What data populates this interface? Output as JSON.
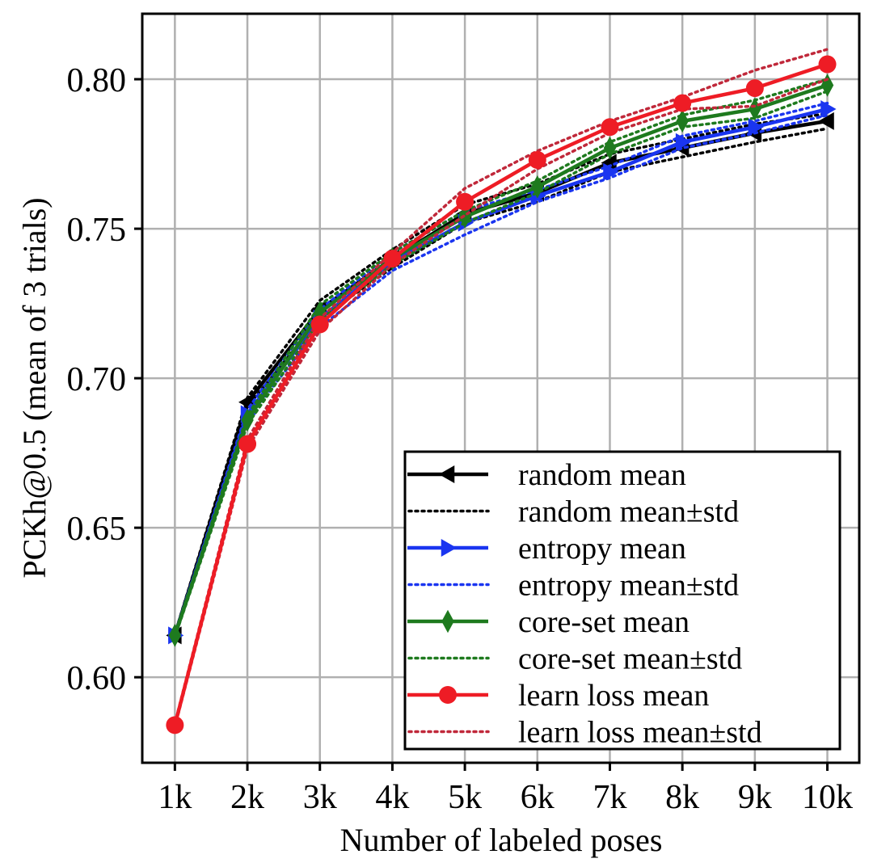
{
  "chart_data": {
    "type": "line",
    "title": "",
    "xlabel": "Number of labeled poses",
    "ylabel": "PCKh@0.5 (mean of 3 trials)",
    "x": [
      1,
      2,
      3,
      4,
      5,
      6,
      7,
      8,
      9,
      10
    ],
    "x_tick_labels": [
      "1k",
      "2k",
      "3k",
      "4k",
      "5k",
      "6k",
      "7k",
      "8k",
      "9k",
      "10k"
    ],
    "xlim": [
      0.55,
      10.44
    ],
    "ylim": [
      0.5714,
      0.8219
    ],
    "y_ticks": [
      0.6,
      0.65,
      0.7,
      0.75,
      0.8
    ],
    "y_tick_labels": [
      "0.60",
      "0.65",
      "0.70",
      "0.75",
      "0.80"
    ],
    "grid": true,
    "legend_position": "lower-right",
    "series": [
      {
        "name": "random",
        "mean_label": "random mean",
        "std_label": "random mean±std",
        "color": "#000000",
        "marker": "triangle-left",
        "mean": [
          0.614,
          0.692,
          0.723,
          0.74,
          0.755,
          0.762,
          0.772,
          0.777,
          0.782,
          0.786
        ],
        "std": [
          0.0005,
          0.0015,
          0.003,
          0.003,
          0.003,
          0.003,
          0.003,
          0.003,
          0.003,
          0.0025
        ]
      },
      {
        "name": "entropy",
        "mean_label": "entropy mean",
        "std_label": "entropy mean±std",
        "color": "#1a35f0",
        "marker": "triangle-right",
        "mean": [
          0.614,
          0.688,
          0.72,
          0.739,
          0.752,
          0.761,
          0.769,
          0.779,
          0.784,
          0.79
        ],
        "std": [
          0.0005,
          0.0015,
          0.003,
          0.003,
          0.004,
          0.002,
          0.002,
          0.002,
          0.002,
          0.002
        ]
      },
      {
        "name": "core-set",
        "mean_label": "core-set mean",
        "std_label": "core-set mean±std",
        "color": "#1e7a1e",
        "marker": "diamond",
        "mean": [
          0.614,
          0.686,
          0.722,
          0.74,
          0.754,
          0.764,
          0.777,
          0.786,
          0.79,
          0.798
        ],
        "std": [
          0.0005,
          0.0015,
          0.0025,
          0.002,
          0.002,
          0.002,
          0.002,
          0.002,
          0.003,
          0.002
        ]
      },
      {
        "name": "learn loss",
        "mean_label": "learn loss mean",
        "std_label": "learn loss mean±std",
        "color": "#ee1c25",
        "std_color": "#c0283a",
        "marker": "circle",
        "mean": [
          0.584,
          0.678,
          0.718,
          0.74,
          0.759,
          0.773,
          0.784,
          0.792,
          0.797,
          0.805
        ],
        "std": [
          0.0005,
          0.0015,
          0.002,
          0.002,
          0.0045,
          0.003,
          0.002,
          0.002,
          0.006,
          0.005
        ]
      }
    ]
  }
}
